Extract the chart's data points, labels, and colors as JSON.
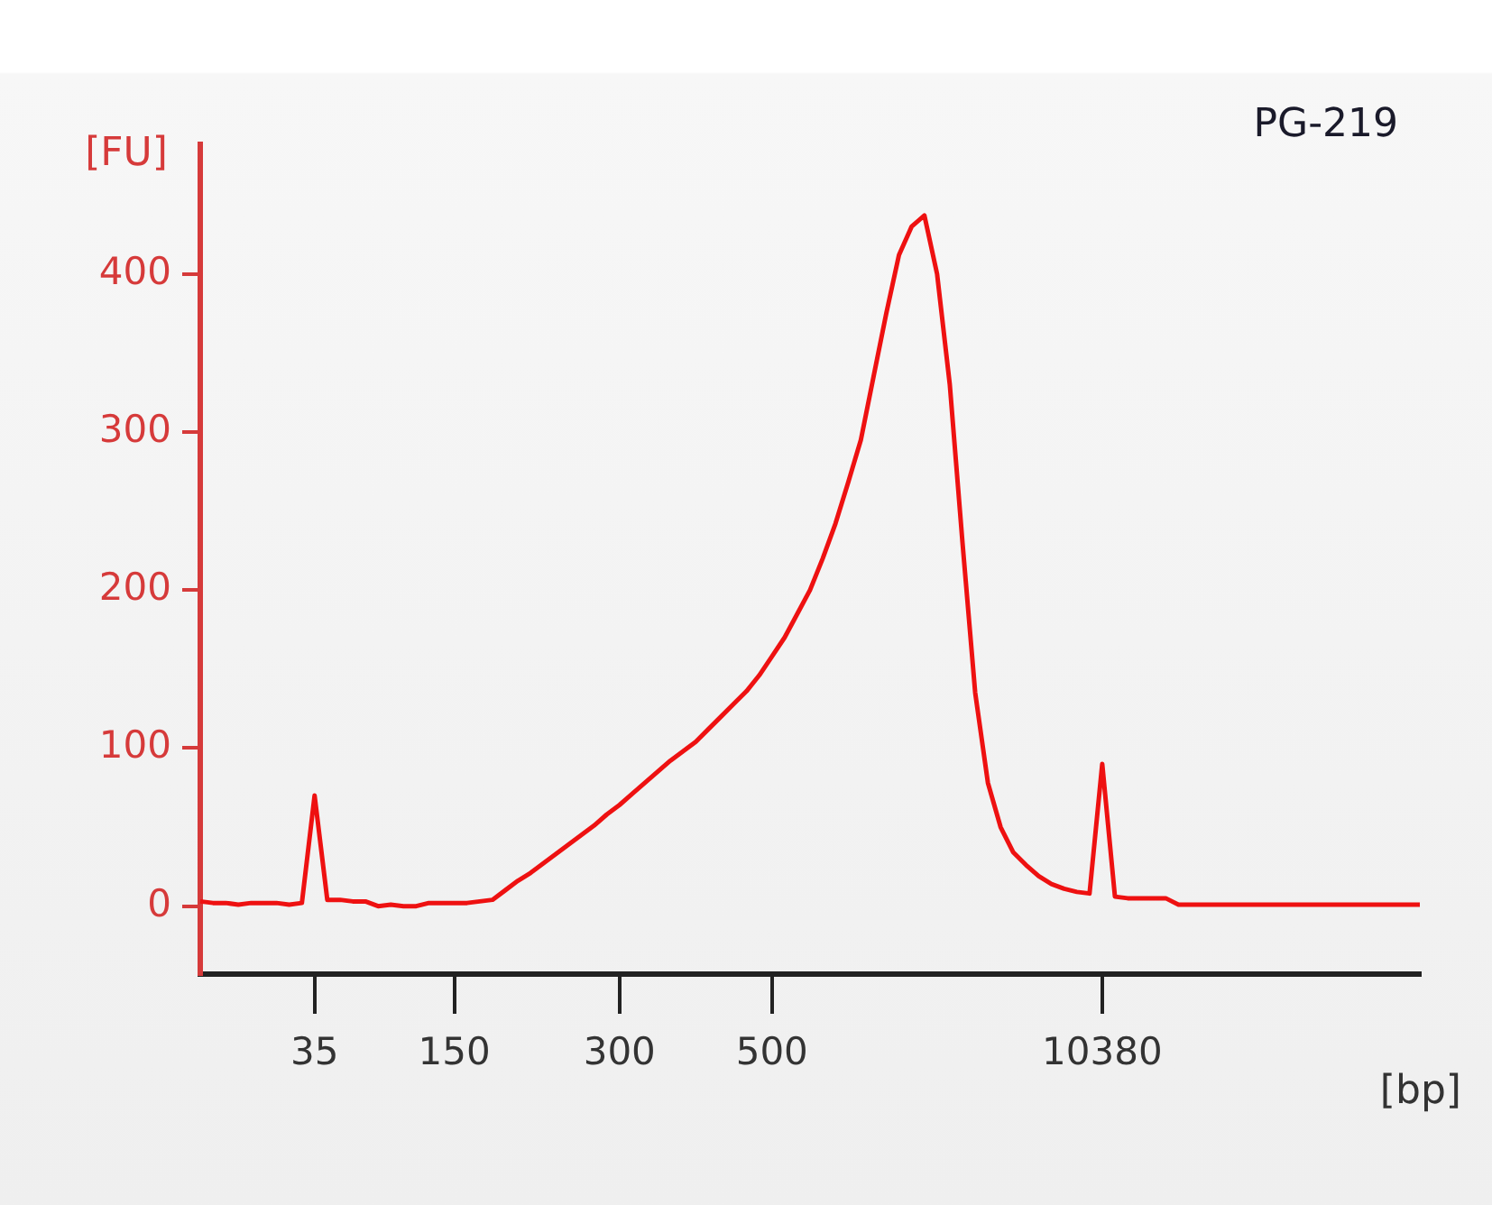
{
  "chart_data": {
    "type": "line",
    "title": "PG-219",
    "xlabel": "[bp]",
    "ylabel": "[FU]",
    "categories": [
      null,
      null,
      null,
      null,
      null,
      null,
      null,
      null,
      null,
      "35",
      null,
      null,
      null,
      null,
      null,
      null,
      null,
      null,
      null,
      null,
      "150",
      null,
      null,
      null,
      null,
      null,
      null,
      null,
      null,
      null,
      null,
      null,
      null,
      "300",
      null,
      null,
      null,
      null,
      null,
      null,
      null,
      null,
      null,
      null,
      null,
      "500",
      null,
      null,
      null,
      null,
      null,
      null,
      null,
      null,
      null,
      null,
      null,
      null,
      null,
      null,
      null,
      null,
      null,
      null,
      null,
      null,
      null,
      null,
      null,
      null,
      null,
      "10380",
      null,
      null,
      null,
      null,
      null,
      null,
      null,
      null,
      null,
      null,
      null,
      null,
      null,
      null,
      null,
      null,
      null,
      null,
      null,
      null,
      null,
      null,
      null,
      null,
      null
    ],
    "series": [
      {
        "color": "#ee1111",
        "values": [
          3,
          2,
          2,
          1,
          2,
          2,
          2,
          1,
          2,
          70,
          4,
          4,
          3,
          3,
          0,
          1,
          0,
          0,
          2,
          2,
          2,
          2,
          3,
          4,
          10,
          16,
          21,
          27,
          33,
          39,
          45,
          51,
          58,
          64,
          71,
          78,
          85,
          92,
          98,
          104,
          112,
          120,
          128,
          136,
          146,
          158,
          170,
          185,
          200,
          220,
          242,
          268,
          295,
          335,
          375,
          412,
          430,
          437,
          400,
          330,
          230,
          135,
          78,
          50,
          34,
          26,
          19,
          14,
          11,
          9,
          8,
          90,
          6,
          5,
          5,
          5,
          5,
          1,
          1,
          1,
          1,
          1,
          1,
          1,
          1,
          1,
          1,
          1,
          1,
          1,
          1,
          1,
          1,
          1,
          1,
          1,
          1
        ]
      }
    ],
    "ylim": [
      -43,
      482
    ],
    "yticks": [
      0,
      100,
      200,
      300,
      400
    ],
    "grid": false,
    "legend": false,
    "marker": "none",
    "line_style": "solid"
  }
}
